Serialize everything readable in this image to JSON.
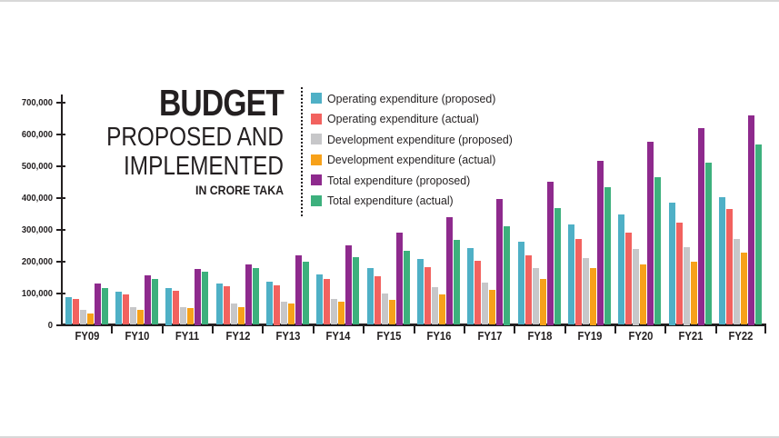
{
  "background_color": "#ffffff",
  "axis_color": "#231f20",
  "header": {
    "title": "BUDGET",
    "subtitle_lines": [
      "PROPOSED AND",
      "IMPLEMENTED"
    ],
    "unit_label": "IN CRORE TAKA"
  },
  "chart_data": {
    "type": "bar",
    "title": "BUDGET PROPOSED AND IMPLEMENTED",
    "unit": "IN CRORE TAKA",
    "grid": false,
    "legend_position": "top-right",
    "ylim": [
      0,
      700000
    ],
    "y_step": 100000,
    "y_tick_labels": [
      "0",
      "100,000",
      "200,000",
      "300,000",
      "400,000",
      "500,000",
      "600,000",
      "700,000"
    ],
    "categories": [
      "FY09",
      "FY10",
      "FY11",
      "FY12",
      "FY13",
      "FY14",
      "FY15",
      "FY16",
      "FY17",
      "FY18",
      "FY19",
      "FY20",
      "FY21",
      "FY22"
    ],
    "series": [
      {
        "name": "Operating expenditure (proposed)",
        "color": "#4fb0c6",
        "values": [
          87000,
          104000,
          115000,
          129000,
          135000,
          159000,
          178000,
          207000,
          242000,
          261000,
          316000,
          347000,
          385000,
          402000
        ]
      },
      {
        "name": "Operating expenditure (actual)",
        "color": "#f2625f",
        "values": [
          82000,
          97000,
          108000,
          121000,
          125000,
          144000,
          152000,
          181000,
          201000,
          219000,
          270000,
          289000,
          321000,
          364000
        ]
      },
      {
        "name": "Development expenditure (proposed)",
        "color": "#c7c7c9",
        "values": [
          47000,
          56000,
          57000,
          68000,
          73000,
          82000,
          98000,
          119000,
          133000,
          178000,
          209000,
          240000,
          245000,
          271000
        ]
      },
      {
        "name": "Development expenditure (actual)",
        "color": "#f7a11a",
        "values": [
          36000,
          46000,
          52000,
          57000,
          66000,
          73000,
          79000,
          97000,
          109000,
          145000,
          180000,
          189000,
          199000,
          226000
        ]
      },
      {
        "name": "Total expenditure (proposed)",
        "color": "#8e2a8d",
        "values": [
          130000,
          157000,
          175000,
          190000,
          220000,
          250000,
          290000,
          338000,
          395000,
          450000,
          515000,
          575000,
          620000,
          660000
        ]
      },
      {
        "name": "Total expenditure (actual)",
        "color": "#3db07d",
        "values": [
          117000,
          143000,
          166000,
          178000,
          198000,
          214000,
          234000,
          268000,
          310000,
          368000,
          434000,
          464000,
          509000,
          568000
        ]
      }
    ]
  }
}
